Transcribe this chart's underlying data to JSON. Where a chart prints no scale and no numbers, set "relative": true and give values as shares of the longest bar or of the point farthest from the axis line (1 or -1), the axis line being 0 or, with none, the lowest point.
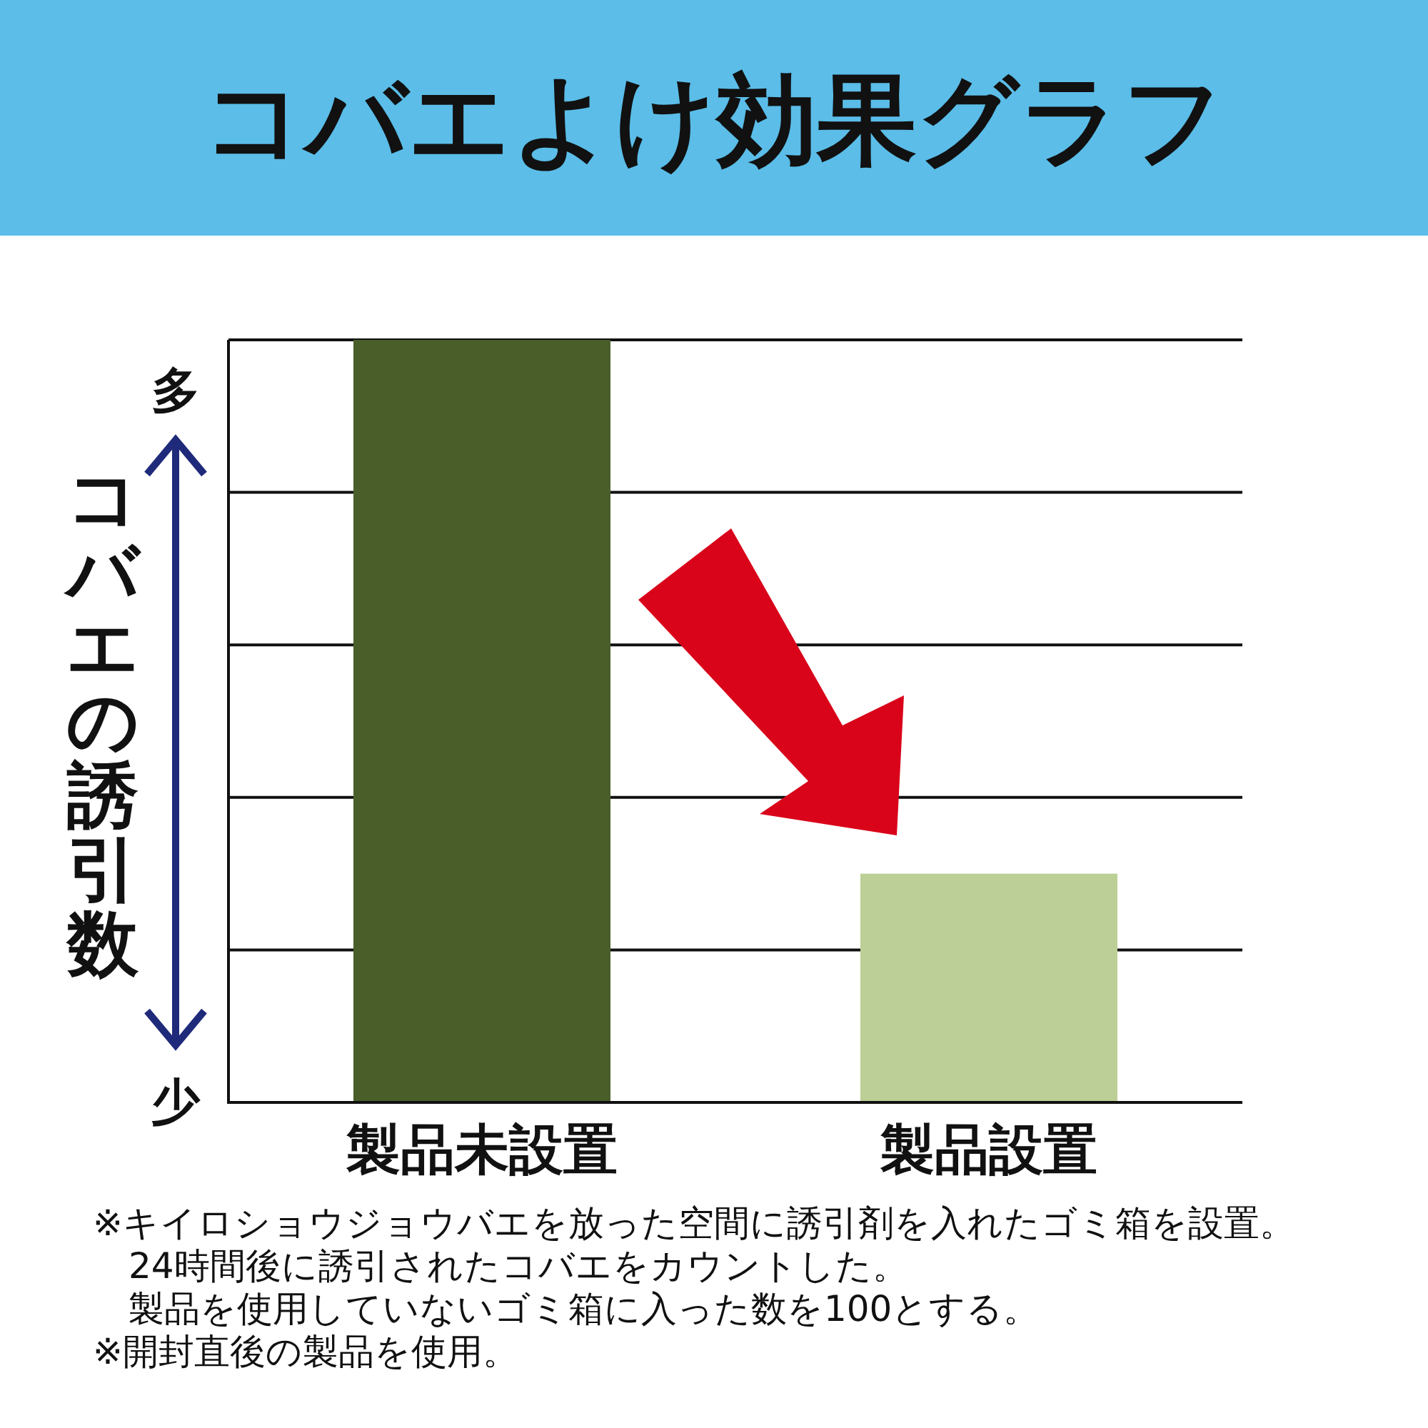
{
  "chart_data": {
    "type": "bar",
    "title": "コバエよけ効果グラフ",
    "ylabel": "コバエの誘引数",
    "categories": [
      "製品未設置",
      "製品設置"
    ],
    "values": [
      1,
      0.3
    ],
    "colors": [
      "#4a5e2a",
      "#bccf96"
    ],
    "relative": true,
    "grid": "y",
    "annotations": [
      "多",
      "少",
      "※キイロショウジョウバエを放った空間に誘引剤を入れたゴミ箱を設置。",
      "　24時間後に誘引されたコバエをカウントした。",
      "　製品を使用していないゴミ箱に入った数を100とする。",
      "※開封直後の製品を使用。"
    ]
  }
}
